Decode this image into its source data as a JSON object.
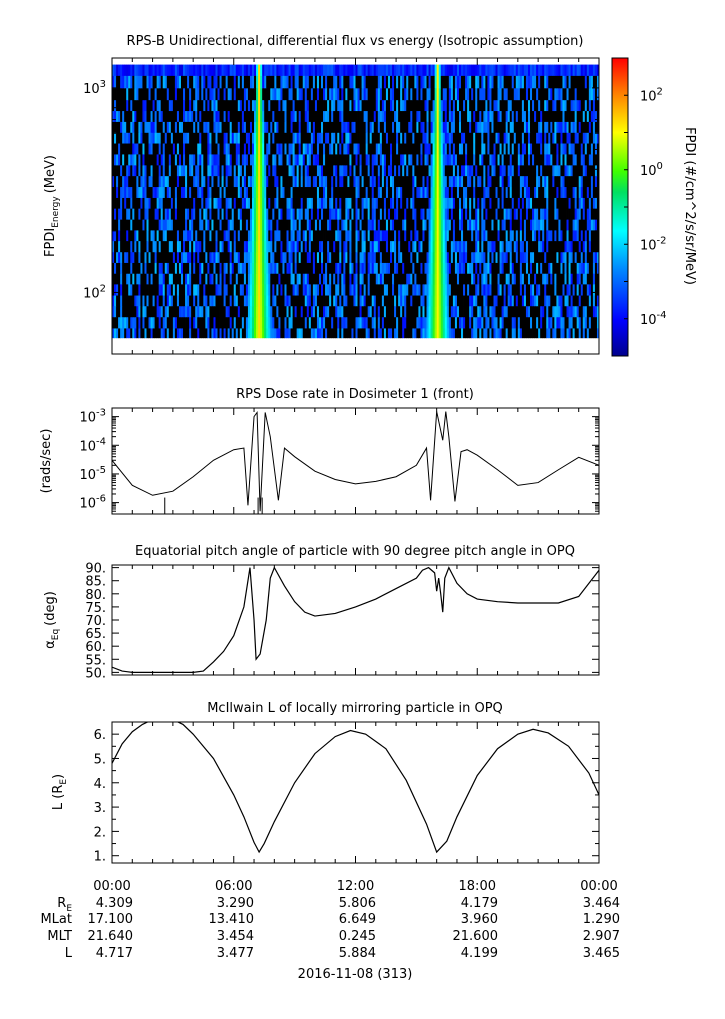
{
  "colors": {
    "line": "#000000",
    "background": "#ffffff"
  },
  "chart_data": [
    {
      "type": "heatmap",
      "title": "RPS-B  Unidirectional, differential flux vs energy (Isotropic assumption)",
      "ylabel_main": "FPDI",
      "ylabel_sub": "Energy",
      "ylabel_units": "(MeV)",
      "yscale": "log",
      "ylim": [
        50,
        1400
      ],
      "yticks": [
        {
          "value": 100,
          "base": "10",
          "exp": "2"
        },
        {
          "value": 1000,
          "base": "10",
          "exp": "3"
        }
      ],
      "energy_bins_MeV": [
        60,
        67,
        76,
        86,
        97,
        110,
        124,
        140,
        158,
        179,
        202,
        228,
        258,
        291,
        329,
        372,
        420,
        475,
        537,
        606,
        685,
        774,
        875,
        1000,
        1150,
        1300
      ],
      "flux_peaks": [
        {
          "center_hour": 7.25,
          "peak_log_flux": 1.3
        },
        {
          "center_hour": 16.05,
          "peak_log_flux": 1.1
        }
      ],
      "colorbar": {
        "label": "FPDI (#/cm^2/s/sr/MeV)",
        "scale": "log",
        "range_exp": [
          -5,
          3
        ],
        "ticks": [
          {
            "base": "10",
            "exp": "2",
            "value": 2
          },
          {
            "base": "10",
            "exp": "0",
            "value": 0
          },
          {
            "base": "10",
            "exp": "-2",
            "value": -2
          },
          {
            "base": "10",
            "exp": "-4",
            "value": -4
          }
        ]
      }
    },
    {
      "type": "line",
      "title": "RPS  Dose rate in Dosimeter 1 (front)",
      "ylabel": "(rads/sec)",
      "yscale": "log",
      "ylim": [
        4e-07,
        0.002
      ],
      "yticks": [
        {
          "value": 0.001,
          "base": "10",
          "exp": "-3"
        },
        {
          "value": 0.0001,
          "base": "10",
          "exp": "-4"
        },
        {
          "value": 1e-05,
          "base": "10",
          "exp": "-5"
        },
        {
          "value": 1e-06,
          "base": "10",
          "exp": "-6"
        }
      ],
      "x_hours": [
        0,
        1,
        2,
        3,
        4,
        5,
        6,
        6.5,
        6.7,
        7.0,
        7.15,
        7.3,
        7.55,
        7.8,
        8.2,
        8.5,
        9,
        10,
        11,
        12,
        13,
        14,
        15,
        15.5,
        15.7,
        16.0,
        16.3,
        16.45,
        16.6,
        16.9,
        17.2,
        17.5,
        18,
        19,
        20,
        21,
        22,
        23,
        24
      ],
      "values": [
        3e-05,
        4e-06,
        1.8e-06,
        2.5e-06,
        8e-06,
        3e-05,
        7e-05,
        8e-05,
        8e-07,
        0.001,
        0.0014,
        5e-07,
        0.0014,
        0.0002,
        1.2e-06,
        8e-05,
        4e-05,
        1.25e-05,
        6.4e-06,
        4.5e-06,
        5.5e-06,
        8e-06,
        2e-05,
        8e-05,
        1.2e-06,
        0.0015,
        0.00015,
        0.0015,
        0.0002,
        1.1e-06,
        6e-05,
        7e-05,
        4.5e-05,
        1.4e-05,
        4e-06,
        5e-06,
        1.4e-05,
        3.8e-05,
        2e-05
      ],
      "spikes_down_hours": [
        2.6,
        7.2,
        7.4
      ]
    },
    {
      "type": "line",
      "title": "Equatorial pitch angle of particle with 90 degree pitch angle in OPQ",
      "ylabel_main": "α",
      "ylabel_sub": "Eq",
      "ylabel_units": "(deg)",
      "ylim": [
        49,
        91
      ],
      "yticks": [
        50,
        55,
        60,
        65,
        70,
        75,
        80,
        85,
        90
      ],
      "ytick_labels": [
        "50.",
        "55.",
        "60.",
        "65.",
        "70.",
        "75.",
        "80.",
        "85.",
        "90."
      ],
      "x_hours": [
        0,
        0.5,
        1,
        2,
        3,
        4,
        4.5,
        5,
        5.5,
        6,
        6.5,
        6.8,
        7.0,
        7.1,
        7.3,
        7.6,
        7.8,
        8.0,
        8.5,
        9,
        9.5,
        10,
        11,
        12,
        13,
        14,
        15,
        15.3,
        15.6,
        15.9,
        16.0,
        16.1,
        16.2,
        16.3,
        16.4,
        16.6,
        17,
        17.5,
        18,
        19,
        20,
        21,
        22,
        23,
        23.5,
        24
      ],
      "values": [
        52,
        50.5,
        50,
        50,
        50,
        50,
        50.5,
        54,
        58,
        64,
        75,
        90,
        70,
        55,
        57,
        70,
        86,
        90,
        83,
        77,
        73,
        71.5,
        72.5,
        75,
        78,
        82,
        86,
        89,
        90,
        88,
        81,
        86,
        80,
        73,
        86,
        90,
        84,
        80,
        78,
        77,
        76.5,
        76.5,
        76.5,
        79,
        84,
        89
      ]
    },
    {
      "type": "line",
      "title": "McIlwain L of locally mirroring particle in OPQ",
      "ylabel_main": "L (R",
      "ylabel_sub": "E",
      "ylabel_end": ")",
      "ylim": [
        0.7,
        6.5
      ],
      "yticks": [
        1,
        2,
        3,
        4,
        5,
        6
      ],
      "ytick_labels": [
        "1.",
        "2.",
        "3.",
        "4.",
        "5.",
        "6."
      ],
      "x_hours": [
        0,
        0.5,
        1,
        1.5,
        2,
        2.5,
        3,
        3.5,
        4,
        5,
        6,
        6.5,
        7,
        7.25,
        7.5,
        8,
        9,
        10,
        11,
        11.75,
        12.5,
        13.5,
        14.5,
        15.5,
        16,
        16.5,
        17,
        18,
        19,
        20,
        20.75,
        21.5,
        22.5,
        23.5,
        24
      ],
      "values": [
        4.8,
        5.6,
        6.1,
        6.4,
        6.6,
        6.65,
        6.6,
        6.4,
        6.0,
        5.0,
        3.5,
        2.6,
        1.55,
        1.15,
        1.5,
        2.4,
        4.0,
        5.2,
        5.9,
        6.15,
        6.0,
        5.4,
        4.1,
        2.3,
        1.15,
        1.6,
        2.6,
        4.3,
        5.4,
        6.0,
        6.2,
        6.05,
        5.5,
        4.4,
        3.5
      ]
    }
  ],
  "x_axis": {
    "tick_labels": [
      "00:00",
      "06:00",
      "12:00",
      "18:00",
      "00:00"
    ],
    "ephemeris": [
      {
        "label_main": "R",
        "label_sub": "E",
        "values": [
          "4.309",
          "3.290",
          "5.806",
          "4.179",
          "3.464"
        ]
      },
      {
        "label_main": "MLat",
        "label_sub": "",
        "values": [
          "17.100",
          "13.410",
          "6.649",
          "3.960",
          "1.290"
        ]
      },
      {
        "label_main": "MLT",
        "label_sub": "",
        "values": [
          "21.640",
          "3.454",
          "0.245",
          "21.600",
          "2.907"
        ]
      },
      {
        "label_main": "L",
        "label_sub": "",
        "values": [
          "4.717",
          "3.477",
          "5.884",
          "4.199",
          "3.465"
        ]
      }
    ],
    "date_label": "2016-11-08 (313)"
  }
}
